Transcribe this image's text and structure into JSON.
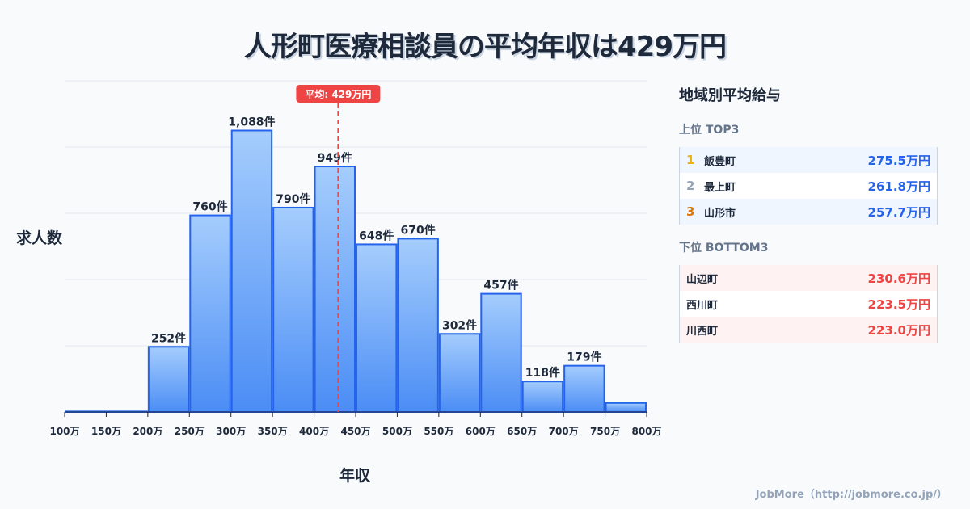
{
  "title": "人形町医療相談員の平均年収は429万円",
  "chart_data": {
    "type": "bar",
    "title": "人形町医療相談員の平均年収は429万円",
    "xlabel": "年収",
    "ylabel": "求人数",
    "categories": [
      "100万",
      "150万",
      "200万",
      "250万",
      "300万",
      "350万",
      "400万",
      "450万",
      "500万",
      "550万",
      "600万",
      "650万",
      "700万",
      "750万",
      "800万"
    ],
    "bin_edges": [
      100,
      150,
      200,
      250,
      300,
      350,
      400,
      450,
      500,
      550,
      600,
      650,
      700,
      750,
      800
    ],
    "values": [
      2,
      2,
      252,
      760,
      1088,
      790,
      949,
      648,
      670,
      302,
      457,
      118,
      179,
      35
    ],
    "labels": [
      "",
      "",
      "252件",
      "760件",
      "1,088件",
      "790件",
      "949件",
      "648件",
      "670件",
      "302件",
      "457件",
      "118件",
      "179件",
      ""
    ],
    "ylim": [
      0,
      1280
    ],
    "grid": true,
    "mean": {
      "value": 429,
      "label": "平均: 429万円"
    }
  },
  "colors": {
    "bar": "#60a5fa",
    "bar_stroke": "#2563eb",
    "mean": "#ef4444"
  },
  "side": {
    "title": "地域別平均給与",
    "top_label": "上位 TOP3",
    "top": [
      {
        "rank": "1",
        "name": "飯豊町",
        "value": "275.5万円",
        "color": "#eab308"
      },
      {
        "rank": "2",
        "name": "最上町",
        "value": "261.8万円",
        "color": "#94a3b8"
      },
      {
        "rank": "3",
        "name": "山形市",
        "value": "257.7万円",
        "color": "#d97706"
      }
    ],
    "bottom_label": "下位 BOTTOM3",
    "bottom": [
      {
        "name": "山辺町",
        "value": "230.6万円"
      },
      {
        "name": "西川町",
        "value": "223.5万円"
      },
      {
        "name": "川西町",
        "value": "223.0万円"
      }
    ]
  },
  "footer": "JobMore（http://jobmore.co.jp/）"
}
